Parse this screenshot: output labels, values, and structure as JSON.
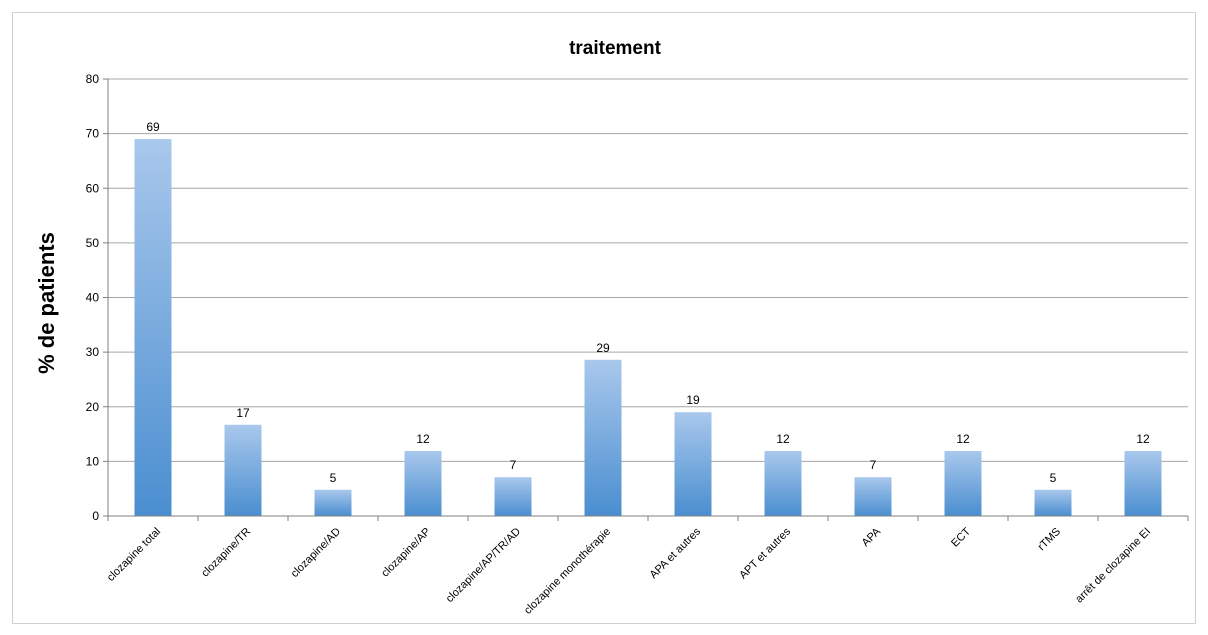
{
  "chart_data": {
    "type": "bar",
    "title": "traitement",
    "xlabel": "",
    "ylabel": "% de patients",
    "ylim": [
      0,
      80
    ],
    "yticks": [
      0,
      10,
      20,
      30,
      40,
      50,
      60,
      70,
      80
    ],
    "grid": true,
    "categories": [
      "clozapine total",
      "clozapine/TR",
      "clozapine/AD",
      "clozapine/AP",
      "clozapine/AP/TR/AD",
      "clozapine monothérapie",
      "APA et autres",
      "APT et autres",
      "APA",
      "ECT",
      "rTMS",
      "arrêt de clozapine EI"
    ],
    "values": [
      69,
      16.7,
      4.8,
      11.9,
      7.1,
      28.6,
      19,
      11.9,
      7.1,
      11.9,
      4.8,
      11.9
    ],
    "data_labels": [
      "69",
      "17",
      "5",
      "12",
      "7",
      "29",
      "19",
      "12",
      "7",
      "12",
      "5",
      "12"
    ],
    "colors": {
      "bar_top": "#a9c8ec",
      "bar_bottom": "#4a8ed0",
      "grid": "#a6a6a6",
      "axis": "#808080"
    }
  }
}
